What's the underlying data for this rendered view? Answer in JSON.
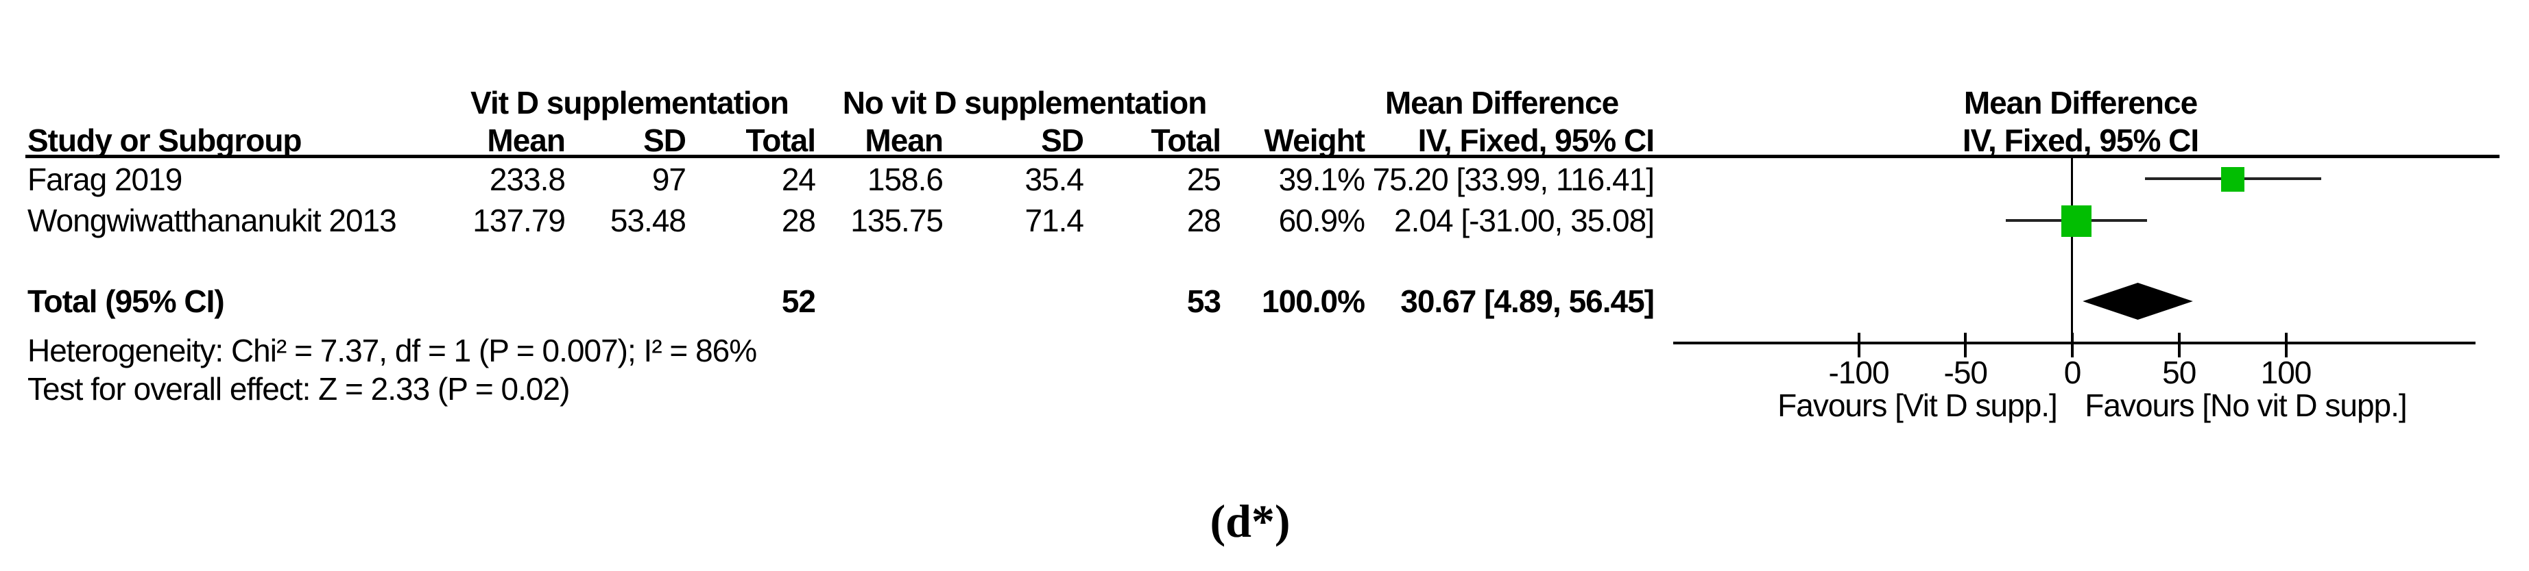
{
  "table": {
    "group1_header": "Vit D supplementation",
    "group2_header": "No vit D supplementation",
    "md_header_line1": "Mean Difference",
    "md_header_line2": "IV, Fixed, 95% CI",
    "plot_header_line1": "Mean Difference",
    "plot_header_line2": "IV, Fixed, 95% CI",
    "col_study": "Study or Subgroup",
    "col_mean": "Mean",
    "col_sd": "SD",
    "col_total": "Total",
    "col_weight": "Weight",
    "rows": [
      {
        "study": "Farag 2019",
        "mean1": "233.8",
        "sd1": "97",
        "total1": "24",
        "mean2": "158.6",
        "sd2": "35.4",
        "total2": "25",
        "weight": "39.1%",
        "ci": "75.20 [33.99, 116.41]"
      },
      {
        "study": "Wongwiwatthananukit 2013",
        "mean1": "137.79",
        "sd1": "53.48",
        "total1": "28",
        "mean2": "135.75",
        "sd2": "71.4",
        "total2": "28",
        "weight": "60.9%",
        "ci": "2.04 [-31.00, 35.08]"
      }
    ],
    "total_row": {
      "label": "Total (95% CI)",
      "total1": "52",
      "total2": "53",
      "weight": "100.0%",
      "ci": "30.67 [4.89, 56.45]"
    },
    "heterogeneity": "Heterogeneity: Chi² = 7.37, df = 1 (P = 0.007); I² = 86%",
    "overall_effect": "Test for overall effect: Z = 2.33 (P = 0.02)"
  },
  "chart_data": {
    "type": "forest",
    "effect_measure": "Mean Difference",
    "method": "IV, Fixed, 95% CI",
    "studies": [
      {
        "name": "Farag 2019",
        "md": 75.2,
        "ci_low": 33.99,
        "ci_high": 116.41,
        "weight_pct": 39.1
      },
      {
        "name": "Wongwiwatthananukit 2013",
        "md": 2.04,
        "ci_low": -31.0,
        "ci_high": 35.08,
        "weight_pct": 60.9
      }
    ],
    "total": {
      "md": 30.67,
      "ci_low": 4.89,
      "ci_high": 56.45,
      "weight_pct": 100.0
    },
    "axis": {
      "ticks": [
        -100,
        -50,
        0,
        50,
        100
      ],
      "min": -185,
      "max": 190
    },
    "favours_left": "Favours [Vit D supp.]",
    "favours_right": "Favours [No vit D supp.]",
    "marker_color": "#02BE02",
    "line_color": "#242424"
  },
  "caption": "(d*)"
}
